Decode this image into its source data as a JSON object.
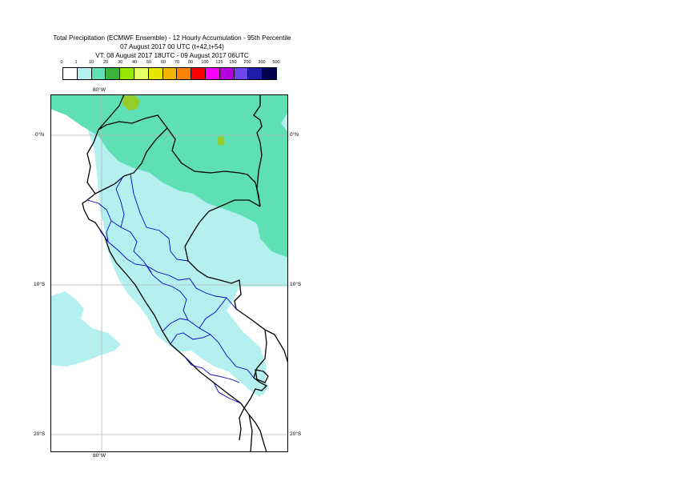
{
  "title": {
    "line1": "Total Precipitation (ECMWF Ensemble) - 12 Hourly Accumulation - 95th Percentile",
    "line2": "07 August 2017 00 UTC (t+42,t+54)",
    "line3": "VT: 08 August 2017 18UTC - 09 August 2017 06UTC"
  },
  "legend": {
    "labels": [
      "0",
      "1",
      "10",
      "20",
      "30",
      "40",
      "50",
      "60",
      "70",
      "80",
      "100",
      "125",
      "150",
      "200",
      "300",
      "500"
    ],
    "colors": [
      "#ffffff",
      "#b4f0f0",
      "#5ee0b4",
      "#3cb43c",
      "#96e600",
      "#e6ff64",
      "#e6e600",
      "#f0b400",
      "#ff8200",
      "#ff0000",
      "#ff00ff",
      "#b400dc",
      "#6e46f0",
      "#1e1eaa",
      "#000050"
    ]
  },
  "axes": {
    "lon_top": "80°W",
    "lon_bottom": "80°W",
    "lat_0": "0°N",
    "lat_10": "10°S",
    "lat_20": "20°S"
  },
  "map_colors": {
    "light_precip": "#b4f0f0",
    "moderate_precip": "#5ee0b4",
    "heavy_precip": "#96cc28",
    "country_border": "#000000",
    "region_border": "#0000c8",
    "graticule": "#b4b4b4"
  }
}
